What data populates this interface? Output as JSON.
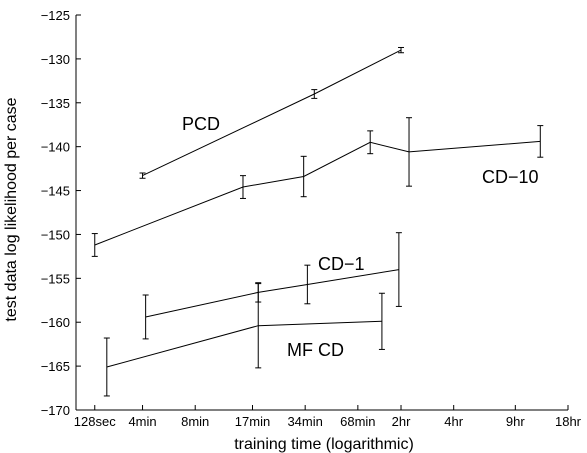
{
  "chart_data": {
    "type": "line",
    "xlabel": "training time (logarithmic)",
    "ylabel": "test data log likelihood per case",
    "x_scale": "log",
    "x_ticks": [
      {
        "label": "128sec",
        "seconds": 128
      },
      {
        "label": "4min",
        "seconds": 240
      },
      {
        "label": "8min",
        "seconds": 480
      },
      {
        "label": "17min",
        "seconds": 1020
      },
      {
        "label": "34min",
        "seconds": 2040
      },
      {
        "label": "68min",
        "seconds": 4080
      },
      {
        "label": "2hr",
        "seconds": 7200
      },
      {
        "label": "4hr",
        "seconds": 14400
      },
      {
        "label": "9hr",
        "seconds": 32400
      },
      {
        "label": "18hr",
        "seconds": 64800
      }
    ],
    "y_ticks": [
      -170,
      -165,
      -160,
      -155,
      -150,
      -145,
      -140,
      -135,
      -130,
      -125
    ],
    "ylim": [
      -170,
      -125
    ],
    "xlim_seconds": [
      100,
      64800
    ],
    "series": [
      {
        "name": "PCD",
        "points": [
          {
            "x": 240,
            "y": -143.3,
            "err": 0.3
          },
          {
            "x": 2300,
            "y": -134.0,
            "err": 0.5
          },
          {
            "x": 7200,
            "y": -129.0,
            "err": 0.3
          }
        ]
      },
      {
        "name": "CD−10",
        "points": [
          {
            "x": 128,
            "y": -151.2,
            "err": 1.3
          },
          {
            "x": 900,
            "y": -144.6,
            "err": 1.3
          },
          {
            "x": 2000,
            "y": -143.4,
            "err": 2.3
          },
          {
            "x": 4800,
            "y": -139.5,
            "err": 1.3
          },
          {
            "x": 8000,
            "y": -140.6,
            "err": 3.9
          },
          {
            "x": 45000,
            "y": -139.4,
            "err": 1.8
          }
        ]
      },
      {
        "name": "CD−1",
        "points": [
          {
            "x": 250,
            "y": -159.4,
            "err": 2.5
          },
          {
            "x": 1100,
            "y": -156.6,
            "err": 1.1
          },
          {
            "x": 2100,
            "y": -155.7,
            "err": 2.2
          },
          {
            "x": 7000,
            "y": -154.0,
            "err": 4.2
          }
        ]
      },
      {
        "name": "MF CD",
        "points": [
          {
            "x": 150,
            "y": -165.1,
            "err": 3.3
          },
          {
            "x": 1100,
            "y": -160.4,
            "err": 4.8
          },
          {
            "x": 5600,
            "y": -159.9,
            "err": 3.2
          }
        ]
      }
    ]
  }
}
